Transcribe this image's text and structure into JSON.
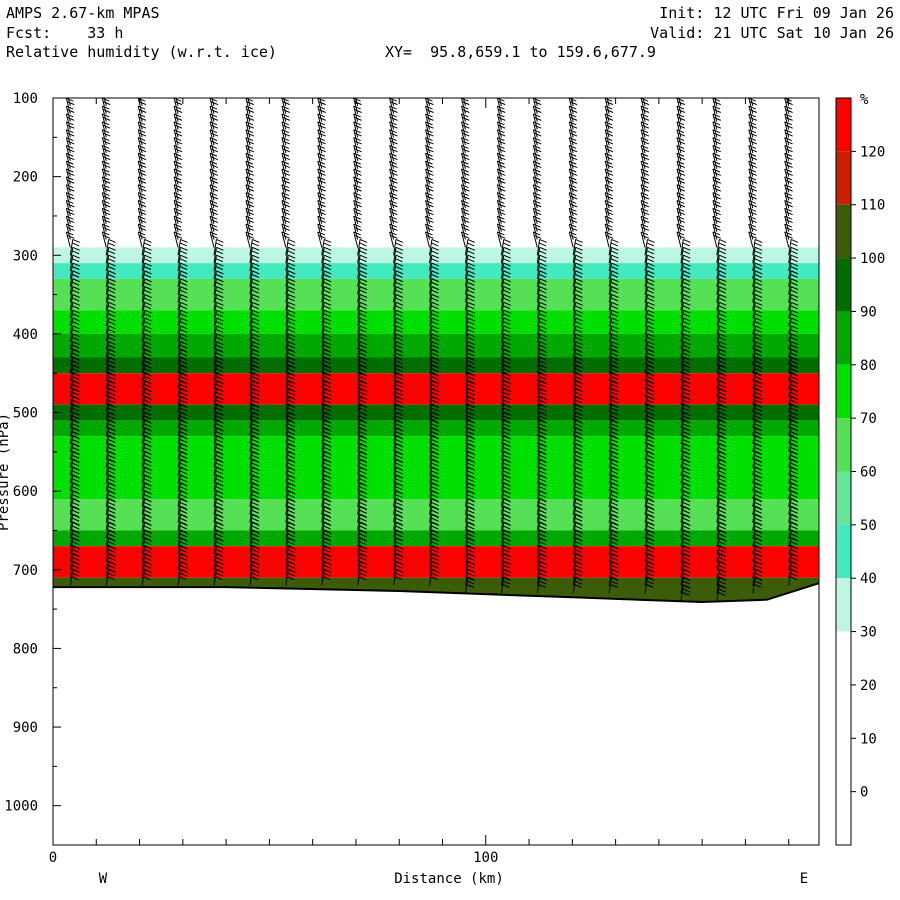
{
  "header": {
    "model": "AMPS 2.67-km MPAS",
    "forecast": "Fcst:    33 h",
    "field": "Relative humidity (w.r.t. ice)",
    "xy": "XY=  95.8,659.1 to 159.6,677.9",
    "init": "Init: 12 UTC Fri 09 Jan 26",
    "valid": "Valid: 21 UTC Sat 10 Jan 26"
  },
  "chart_data": {
    "type": "heatmap",
    "title": "Relative humidity (w.r.t. ice)",
    "xlabel": "Distance (km)",
    "ylabel": "Pressure (hPa)",
    "x_ticks": [
      "0",
      "100"
    ],
    "x_tick_values": [
      0,
      100
    ],
    "xlim": [
      0,
      177
    ],
    "ylim": [
      1050,
      100
    ],
    "y_ticks": [
      100,
      200,
      300,
      400,
      500,
      600,
      700,
      800,
      900,
      1000
    ],
    "x_end_labels": {
      "left": "W",
      "right": "E"
    },
    "colorbar": {
      "unit": "%",
      "labels": [
        "120",
        "110",
        "100",
        "90",
        "80",
        "70",
        "60",
        "50",
        "40",
        "30",
        "20",
        "10",
        "0"
      ],
      "levels": [
        130,
        120,
        110,
        100,
        90,
        80,
        70,
        60,
        50,
        40,
        30,
        20,
        10,
        0,
        -10
      ],
      "colors": [
        "#ff0000",
        "#cc1e00",
        "#3d5c0a",
        "#006e00",
        "#00a800",
        "#00e000",
        "#55e055",
        "#66e699",
        "#44eabf",
        "#bdf7e3",
        "#ffffff",
        "#ffffff",
        "#ffffff",
        "#ffffff"
      ]
    },
    "rh_layers": [
      {
        "p_top": 100,
        "p_bottom": 290,
        "rh": 10
      },
      {
        "p_top": 290,
        "p_bottom": 310,
        "rh": 35
      },
      {
        "p_top": 310,
        "p_bottom": 330,
        "rh": 45
      },
      {
        "p_top": 330,
        "p_bottom": 370,
        "rh": 65
      },
      {
        "p_top": 370,
        "p_bottom": 400,
        "rh": 75
      },
      {
        "p_top": 400,
        "p_bottom": 430,
        "rh": 85
      },
      {
        "p_top": 430,
        "p_bottom": 450,
        "rh": 95
      },
      {
        "p_top": 450,
        "p_bottom": 490,
        "rh": 125
      },
      {
        "p_top": 490,
        "p_bottom": 510,
        "rh": 95
      },
      {
        "p_top": 510,
        "p_bottom": 530,
        "rh": 85
      },
      {
        "p_top": 530,
        "p_bottom": 610,
        "rh": 75
      },
      {
        "p_top": 610,
        "p_bottom": 650,
        "rh": 65
      },
      {
        "p_top": 650,
        "p_bottom": 670,
        "rh": 85
      },
      {
        "p_top": 670,
        "p_bottom": 710,
        "rh": 125
      },
      {
        "p_top": 710,
        "p_bottom": 740,
        "rh": 105
      }
    ],
    "terrain_pressure": [
      {
        "x": 0,
        "p": 722
      },
      {
        "x": 40,
        "p": 722
      },
      {
        "x": 80,
        "p": 727
      },
      {
        "x": 120,
        "p": 735
      },
      {
        "x": 150,
        "p": 741
      },
      {
        "x": 165,
        "p": 738
      },
      {
        "x": 177,
        "p": 717
      }
    ]
  }
}
